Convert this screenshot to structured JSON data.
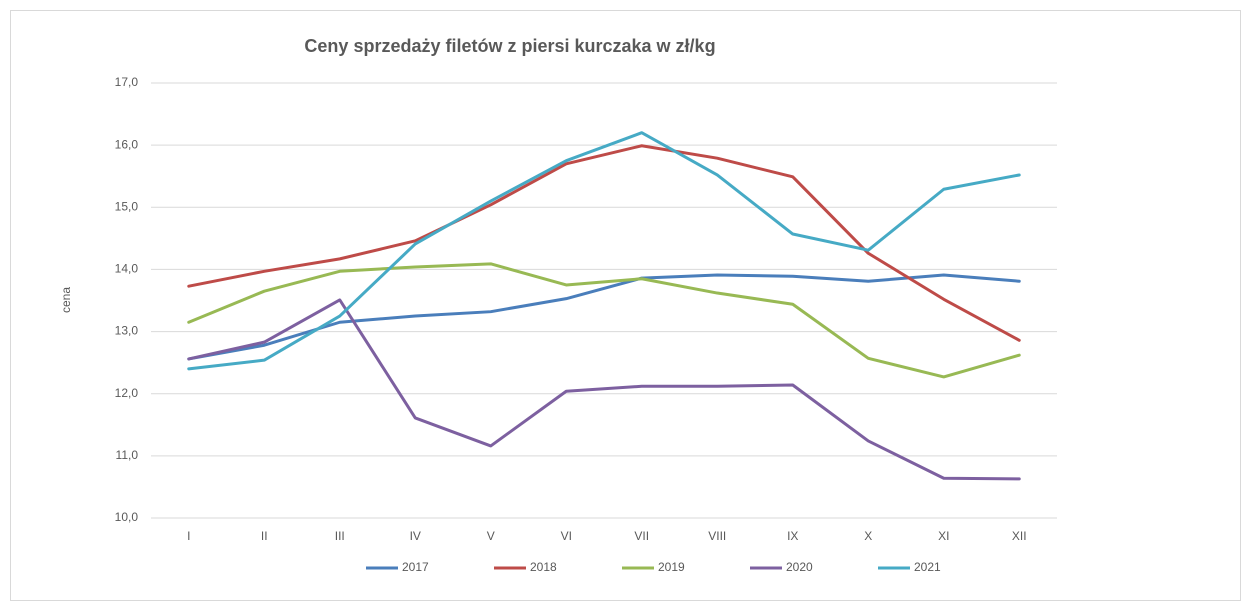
{
  "chart_data": {
    "type": "line",
    "title": "Ceny sprzedaży filetów z piersi kurczaka w zł/kg",
    "y_label": "cena",
    "categories": [
      "I",
      "II",
      "III",
      "IV",
      "V",
      "VI",
      "VII",
      "VIII",
      "IX",
      "X",
      "XI",
      "XII"
    ],
    "series": [
      {
        "name": "2017",
        "color": "#4a7ebb",
        "values": [
          12.56,
          12.78,
          13.15,
          13.25,
          13.32,
          13.53,
          13.86,
          13.91,
          13.89,
          13.81,
          13.91,
          13.81
        ]
      },
      {
        "name": "2018",
        "color": "#be4b48",
        "values": [
          13.73,
          13.97,
          14.17,
          14.46,
          15.04,
          15.7,
          15.99,
          15.79,
          15.49,
          14.26,
          13.52,
          12.86
        ]
      },
      {
        "name": "2019",
        "color": "#98b954",
        "values": [
          13.15,
          13.65,
          13.97,
          14.04,
          14.09,
          13.75,
          13.85,
          13.62,
          13.44,
          12.57,
          12.27,
          12.62
        ]
      },
      {
        "name": "2020",
        "color": "#7d60a0",
        "values": [
          12.56,
          12.83,
          13.51,
          11.61,
          11.16,
          12.04,
          12.12,
          12.12,
          12.14,
          11.24,
          10.64,
          10.63
        ]
      },
      {
        "name": "2021",
        "color": "#46aac5",
        "values": [
          12.4,
          12.54,
          13.25,
          14.41,
          15.1,
          15.75,
          16.2,
          15.52,
          14.57,
          14.31,
          15.29,
          15.52
        ]
      }
    ],
    "ylim": [
      10,
      17
    ],
    "yticks": [
      {
        "value": 10,
        "label": "10,0"
      },
      {
        "value": 11,
        "label": "11,0"
      },
      {
        "value": 12,
        "label": "12,0"
      },
      {
        "value": 13,
        "label": "13,0"
      },
      {
        "value": 14,
        "label": "14,0"
      },
      {
        "value": 15,
        "label": "15,0"
      },
      {
        "value": 16,
        "label": "16,0"
      },
      {
        "value": 17,
        "label": "17,0"
      }
    ],
    "grid": true,
    "legend": "bottom"
  }
}
